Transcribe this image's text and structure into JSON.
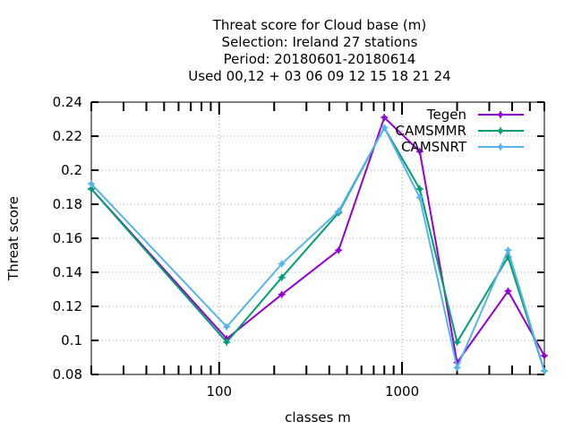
{
  "chart_data": {
    "type": "line",
    "title_lines": [
      "Threat score  for Cloud base (m)",
      "Selection: Ireland      27 stations",
      "Period: 20180601-20180614",
      "Used  00,12  + 03 06 09 12 15 18 21 24"
    ],
    "xlabel": "classes m",
    "ylabel": "Threat score",
    "xscale": "log",
    "xlim": [
      20,
      6000
    ],
    "ylim": [
      0.08,
      0.24
    ],
    "yticks": [
      "0.08",
      "0.1",
      "0.12",
      "0.14",
      "0.16",
      "0.18",
      "0.2",
      "0.22",
      "0.24"
    ],
    "xticks": [
      {
        "value": 100,
        "label": "100"
      },
      {
        "value": 1000,
        "label": "1000"
      }
    ],
    "grid": true,
    "legend_position": "top-right",
    "series": [
      {
        "name": "Tegen",
        "color": "#9400d3",
        "points": [
          [
            20,
            0.189
          ],
          [
            110,
            0.101
          ],
          [
            220,
            0.127
          ],
          [
            450,
            0.153
          ],
          [
            800,
            0.231
          ],
          [
            1250,
            0.211
          ],
          [
            2000,
            0.087
          ],
          [
            3800,
            0.129
          ],
          [
            6000,
            0.091
          ]
        ]
      },
      {
        "name": "CAMSMMR",
        "color": "#009e73",
        "points": [
          [
            20,
            0.189
          ],
          [
            110,
            0.099
          ],
          [
            220,
            0.137
          ],
          [
            450,
            0.175
          ],
          [
            800,
            0.225
          ],
          [
            1250,
            0.189
          ],
          [
            2000,
            0.099
          ],
          [
            3800,
            0.149
          ],
          [
            6000,
            0.082
          ]
        ]
      },
      {
        "name": "CAMSNRT",
        "color": "#56b4e9",
        "points": [
          [
            20,
            0.192
          ],
          [
            110,
            0.108
          ],
          [
            220,
            0.145
          ],
          [
            450,
            0.176
          ],
          [
            800,
            0.225
          ],
          [
            1250,
            0.184
          ],
          [
            2000,
            0.084
          ],
          [
            3800,
            0.153
          ],
          [
            6000,
            0.082
          ]
        ]
      }
    ]
  }
}
